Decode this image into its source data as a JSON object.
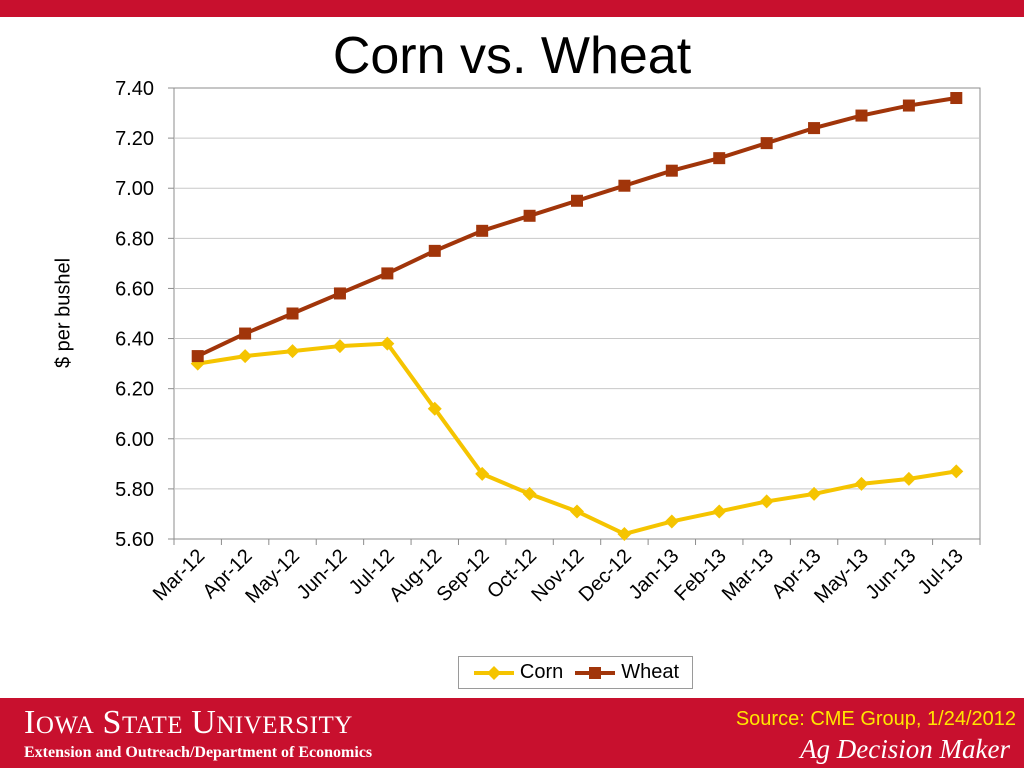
{
  "slide": {
    "title": "Corn vs. Wheat",
    "footer": {
      "university_name": "IOWA STATE UNIVERSITY",
      "department": "Extension and Outreach/Department of Economics",
      "source": "Source: CME Group, 1/24/2012",
      "brand": "Ag Decision Maker"
    }
  },
  "colors": {
    "header_bar": "#c8102e",
    "footer_bar": "#c8102e",
    "corn": "#f5c400",
    "wheat": "#a1350a",
    "source_text": "#ffe600"
  },
  "chart_data": {
    "type": "line",
    "title": "Corn vs. Wheat",
    "xlabel": "",
    "ylabel": "$ per bushel",
    "ylim": [
      5.6,
      7.4
    ],
    "y_ticks": [
      "5.60",
      "5.80",
      "6.00",
      "6.20",
      "6.40",
      "6.60",
      "6.80",
      "7.00",
      "7.20",
      "7.40"
    ],
    "grid": true,
    "legend": "bottom",
    "categories": [
      "Mar-12",
      "Apr-12",
      "May-12",
      "Jun-12",
      "Jul-12",
      "Aug-12",
      "Sep-12",
      "Oct-12",
      "Nov-12",
      "Dec-12",
      "Jan-13",
      "Feb-13",
      "Mar-13",
      "Apr-13",
      "May-13",
      "Jun-13",
      "Jul-13"
    ],
    "series": [
      {
        "name": "Corn",
        "marker": "diamond",
        "values": [
          6.3,
          6.33,
          6.35,
          6.37,
          6.38,
          6.12,
          5.86,
          5.78,
          5.71,
          5.62,
          5.67,
          5.71,
          5.75,
          5.78,
          5.82,
          5.84,
          5.87
        ]
      },
      {
        "name": "Wheat",
        "marker": "square",
        "values": [
          6.33,
          6.42,
          6.5,
          6.58,
          6.66,
          6.75,
          6.83,
          6.89,
          6.95,
          7.01,
          7.07,
          7.12,
          7.18,
          7.24,
          7.29,
          7.33,
          7.36
        ]
      }
    ]
  }
}
